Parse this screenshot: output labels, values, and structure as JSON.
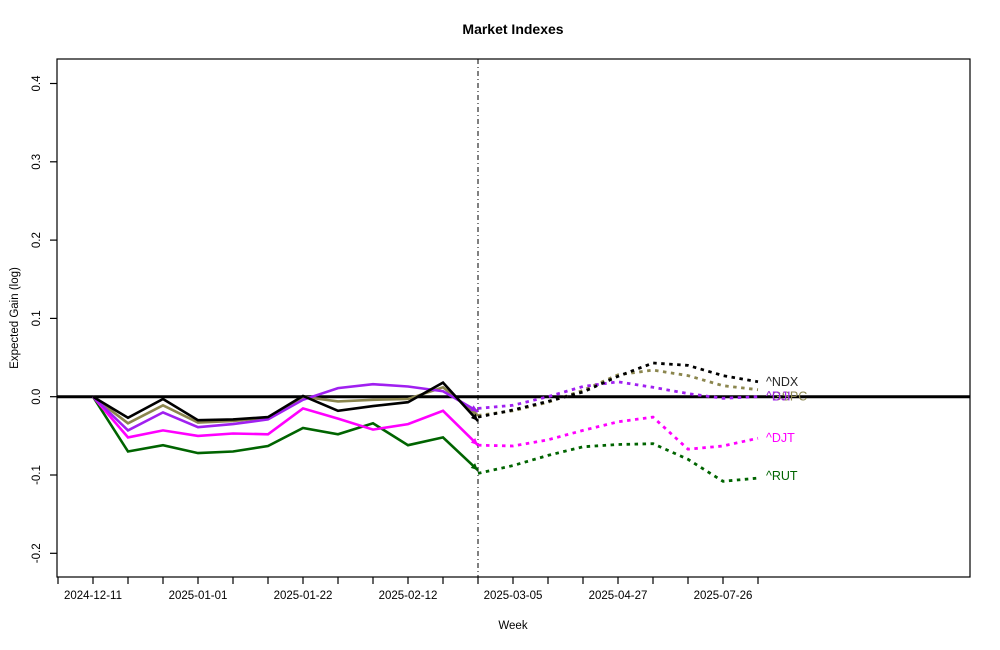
{
  "window": {
    "title": "Market Indexes"
  },
  "chart_data": {
    "type": "line",
    "title": "Market Indexes",
    "xlabel": "Week",
    "ylabel": "Expected Gain (log)",
    "legend_position": "right-annotations",
    "grid": false,
    "zero_line": true,
    "forecast_divider_style": "dash-dot-vertical",
    "forecast_start_week": 11,
    "weeks_total": 20,
    "x_tick_count": 21,
    "x_first_tick_week": -1,
    "x_label_every_n_weeks": 3,
    "x_tick_labels": [
      "2024-12-11",
      "2025-01-01",
      "2025-01-22",
      "2025-02-12",
      "2025-03-05",
      "2025-04-27",
      "2025-07-26"
    ],
    "y_ticks": [
      {
        "label": "0.4",
        "value": 0.4
      },
      {
        "label": "0.3",
        "value": 0.3
      },
      {
        "label": "0.2",
        "value": 0.2
      },
      {
        "label": "0.1",
        "value": 0.1
      },
      {
        "label": "0.0",
        "value": 0.0
      },
      {
        "label": "-0.1",
        "value": -0.1
      },
      {
        "label": "-0.2",
        "value": -0.2
      }
    ],
    "ylim": [
      -0.23,
      0.43
    ],
    "series": [
      {
        "name": "^RUT",
        "id": "rut",
        "color": "#006400",
        "label_dy": -2,
        "actual": [
          0.0,
          -0.07,
          -0.062,
          -0.072,
          -0.07,
          -0.063,
          -0.04,
          -0.048,
          -0.034,
          -0.062,
          -0.052,
          -0.094
        ],
        "forecast": [
          -0.098,
          -0.088,
          -0.075,
          -0.064,
          -0.061,
          -0.06,
          -0.08,
          -0.108,
          -0.104
        ]
      },
      {
        "name": "^DJT",
        "id": "djt",
        "color": "#FF00FF",
        "label_dy": 0,
        "actual": [
          0.0,
          -0.052,
          -0.043,
          -0.05,
          -0.047,
          -0.048,
          -0.015,
          -0.028,
          -0.042,
          -0.035,
          -0.018,
          -0.062
        ],
        "forecast": [
          -0.062,
          -0.063,
          -0.055,
          -0.043,
          -0.032,
          -0.026,
          -0.067,
          -0.063,
          -0.053
        ]
      },
      {
        "name": "^GSPC",
        "id": "gspc",
        "color": "#8B864E",
        "label_dy": 7,
        "actual": [
          0.0,
          -0.034,
          -0.011,
          -0.033,
          -0.031,
          -0.027,
          0.0,
          -0.006,
          -0.004,
          -0.003,
          0.012,
          -0.024
        ],
        "forecast": [
          -0.024,
          -0.018,
          -0.007,
          0.008,
          0.028,
          0.034,
          0.027,
          0.014,
          0.009
        ]
      },
      {
        "name": "^DJI",
        "id": "dji",
        "color": "#A020F0",
        "label_dy": 0,
        "actual": [
          0.0,
          -0.043,
          -0.02,
          -0.039,
          -0.035,
          -0.029,
          -0.004,
          0.011,
          0.016,
          0.013,
          0.007,
          -0.019
        ],
        "forecast": [
          -0.015,
          -0.011,
          0.0,
          0.013,
          0.019,
          0.012,
          0.004,
          -0.002,
          0.0
        ]
      },
      {
        "name": "^NDX",
        "id": "ndx",
        "color": "#000000",
        "label_color": "#262626",
        "label_dy": 0,
        "actual": [
          0.0,
          -0.027,
          -0.003,
          -0.03,
          -0.029,
          -0.026,
          0.001,
          -0.018,
          -0.012,
          -0.007,
          0.018,
          -0.031
        ],
        "forecast": [
          -0.026,
          -0.017,
          -0.006,
          0.006,
          0.026,
          0.043,
          0.04,
          0.027,
          0.019
        ]
      }
    ]
  }
}
